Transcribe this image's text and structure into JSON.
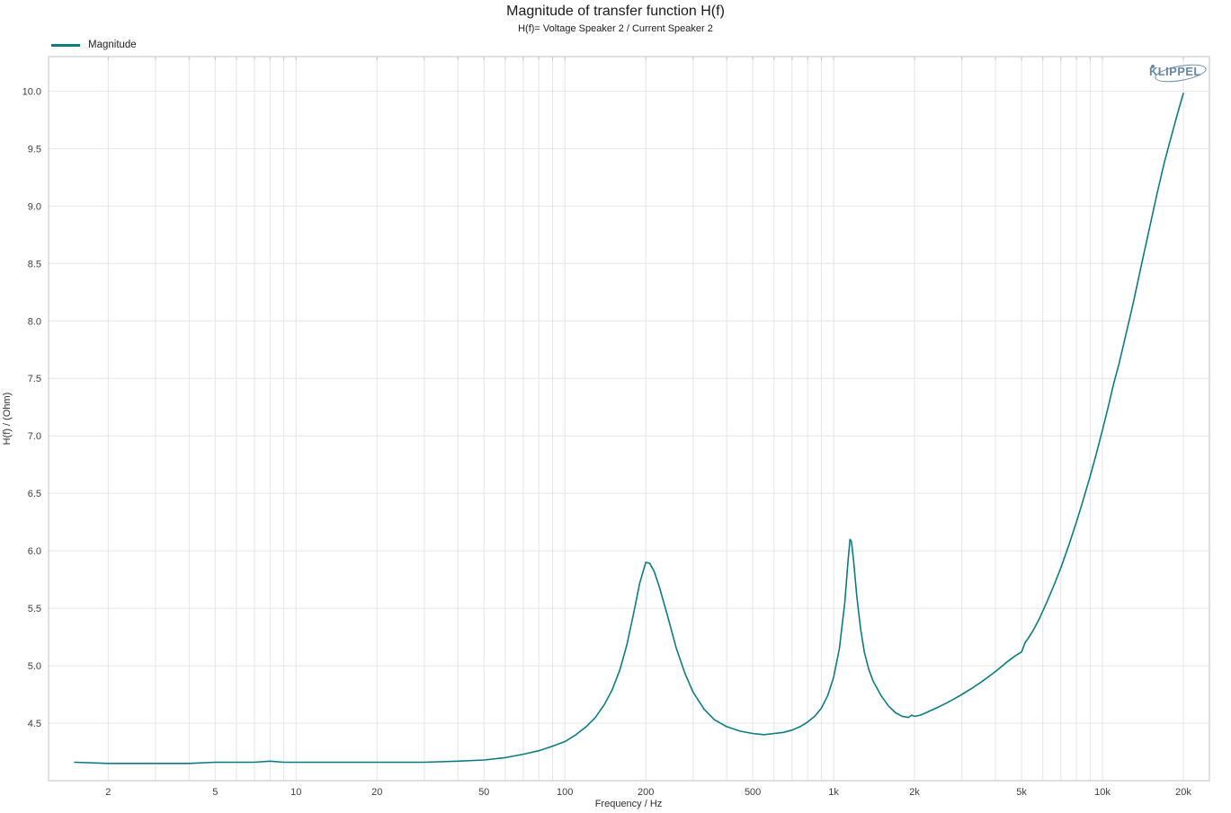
{
  "branding": {
    "logo_text": "KLIPPEL"
  },
  "chart_data": {
    "type": "line",
    "title": "Magnitude of transfer function H(f)",
    "subtitle": "H(f)= Voltage Speaker 2 / Current Speaker 2",
    "xlabel": "Frequency / Hz",
    "ylabel": "H(f) / (Ohm)",
    "x_scale": "log",
    "xlim": [
      1.2,
      25000
    ],
    "ylim": [
      4.0,
      10.3
    ],
    "grid": true,
    "legend_position": "top-left",
    "line_color": "#0d7c80",
    "grid_color": "#e4e4e4",
    "frame_color": "#bcc3c9",
    "x_ticks": [
      {
        "f": 2,
        "label": "2"
      },
      {
        "f": 5,
        "label": "5"
      },
      {
        "f": 10,
        "label": "10"
      },
      {
        "f": 20,
        "label": "20"
      },
      {
        "f": 50,
        "label": "50"
      },
      {
        "f": 100,
        "label": "100"
      },
      {
        "f": 200,
        "label": "200"
      },
      {
        "f": 500,
        "label": "500"
      },
      {
        "f": 1000,
        "label": "1k"
      },
      {
        "f": 2000,
        "label": "2k"
      },
      {
        "f": 5000,
        "label": "5k"
      },
      {
        "f": 10000,
        "label": "10k"
      },
      {
        "f": 20000,
        "label": "20k"
      }
    ],
    "y_ticks": [
      4.5,
      5.0,
      5.5,
      6.0,
      6.5,
      7.0,
      7.5,
      8.0,
      8.5,
      9.0,
      9.5,
      10.0
    ],
    "series": [
      {
        "name": "Magnitude",
        "points": [
          [
            1.5,
            4.16
          ],
          [
            2,
            4.15
          ],
          [
            3,
            4.15
          ],
          [
            4,
            4.15
          ],
          [
            5,
            4.16
          ],
          [
            6,
            4.16
          ],
          [
            7,
            4.16
          ],
          [
            8,
            4.17
          ],
          [
            9,
            4.16
          ],
          [
            10,
            4.16
          ],
          [
            12,
            4.16
          ],
          [
            15,
            4.16
          ],
          [
            20,
            4.16
          ],
          [
            25,
            4.16
          ],
          [
            30,
            4.16
          ],
          [
            40,
            4.17
          ],
          [
            50,
            4.18
          ],
          [
            60,
            4.2
          ],
          [
            70,
            4.23
          ],
          [
            80,
            4.26
          ],
          [
            90,
            4.3
          ],
          [
            100,
            4.34
          ],
          [
            110,
            4.4
          ],
          [
            120,
            4.47
          ],
          [
            130,
            4.55
          ],
          [
            140,
            4.66
          ],
          [
            150,
            4.79
          ],
          [
            160,
            4.96
          ],
          [
            170,
            5.18
          ],
          [
            180,
            5.45
          ],
          [
            190,
            5.72
          ],
          [
            200,
            5.9
          ],
          [
            207,
            5.89
          ],
          [
            215,
            5.82
          ],
          [
            225,
            5.68
          ],
          [
            240,
            5.45
          ],
          [
            260,
            5.15
          ],
          [
            280,
            4.93
          ],
          [
            300,
            4.77
          ],
          [
            330,
            4.62
          ],
          [
            360,
            4.53
          ],
          [
            400,
            4.47
          ],
          [
            450,
            4.43
          ],
          [
            500,
            4.41
          ],
          [
            550,
            4.4
          ],
          [
            600,
            4.41
          ],
          [
            650,
            4.42
          ],
          [
            700,
            4.44
          ],
          [
            750,
            4.47
          ],
          [
            800,
            4.51
          ],
          [
            850,
            4.56
          ],
          [
            900,
            4.63
          ],
          [
            950,
            4.74
          ],
          [
            1000,
            4.9
          ],
          [
            1050,
            5.15
          ],
          [
            1100,
            5.55
          ],
          [
            1130,
            5.9
          ],
          [
            1150,
            6.1
          ],
          [
            1165,
            6.08
          ],
          [
            1185,
            5.92
          ],
          [
            1220,
            5.6
          ],
          [
            1260,
            5.32
          ],
          [
            1300,
            5.12
          ],
          [
            1350,
            4.97
          ],
          [
            1400,
            4.87
          ],
          [
            1500,
            4.74
          ],
          [
            1600,
            4.65
          ],
          [
            1700,
            4.59
          ],
          [
            1800,
            4.56
          ],
          [
            1900,
            4.55
          ],
          [
            1950,
            4.57
          ],
          [
            2000,
            4.56
          ],
          [
            2100,
            4.57
          ],
          [
            2200,
            4.59
          ],
          [
            2400,
            4.63
          ],
          [
            2600,
            4.67
          ],
          [
            2800,
            4.71
          ],
          [
            3000,
            4.75
          ],
          [
            3300,
            4.81
          ],
          [
            3600,
            4.87
          ],
          [
            4000,
            4.95
          ],
          [
            4400,
            5.03
          ],
          [
            4700,
            5.08
          ],
          [
            5000,
            5.12
          ],
          [
            5150,
            5.2
          ],
          [
            5300,
            5.24
          ],
          [
            5500,
            5.3
          ],
          [
            5800,
            5.4
          ],
          [
            6200,
            5.55
          ],
          [
            6600,
            5.7
          ],
          [
            7000,
            5.85
          ],
          [
            7500,
            6.05
          ],
          [
            8000,
            6.25
          ],
          [
            8500,
            6.45
          ],
          [
            9000,
            6.65
          ],
          [
            9500,
            6.85
          ],
          [
            10000,
            7.05
          ],
          [
            10500,
            7.25
          ],
          [
            11000,
            7.45
          ],
          [
            11500,
            7.62
          ],
          [
            12000,
            7.8
          ],
          [
            13000,
            8.15
          ],
          [
            14000,
            8.5
          ],
          [
            15000,
            8.82
          ],
          [
            16000,
            9.12
          ],
          [
            17000,
            9.38
          ],
          [
            18000,
            9.6
          ],
          [
            19000,
            9.8
          ],
          [
            20000,
            9.98
          ]
        ]
      }
    ]
  }
}
